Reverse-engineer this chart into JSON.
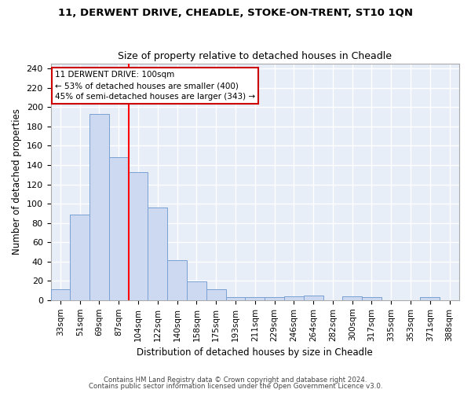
{
  "title1": "11, DERWENT DRIVE, CHEADLE, STOKE-ON-TRENT, ST10 1QN",
  "title2": "Size of property relative to detached houses in Cheadle",
  "xlabel": "Distribution of detached houses by size in Cheadle",
  "ylabel": "Number of detached properties",
  "categories": [
    "33sqm",
    "51sqm",
    "69sqm",
    "87sqm",
    "104sqm",
    "122sqm",
    "140sqm",
    "158sqm",
    "175sqm",
    "193sqm",
    "211sqm",
    "229sqm",
    "246sqm",
    "264sqm",
    "282sqm",
    "300sqm",
    "317sqm",
    "335sqm",
    "353sqm",
    "371sqm",
    "388sqm"
  ],
  "values": [
    11,
    89,
    193,
    148,
    133,
    96,
    41,
    19,
    11,
    3,
    3,
    3,
    4,
    5,
    0,
    4,
    3,
    0,
    0,
    3,
    0
  ],
  "bar_color": "#ccd9f0",
  "bar_edge_color": "#7aa0d4",
  "red_line_index": 4,
  "ylim": [
    0,
    245
  ],
  "yticks": [
    0,
    20,
    40,
    60,
    80,
    100,
    120,
    140,
    160,
    180,
    200,
    220,
    240
  ],
  "annotation_text": "11 DERWENT DRIVE: 100sqm\n← 53% of detached houses are smaller (400)\n45% of semi-detached houses are larger (343) →",
  "annotation_box_color": "#ffffff",
  "annotation_box_edge": "#cc0000",
  "footer1": "Contains HM Land Registry data © Crown copyright and database right 2024.",
  "footer2": "Contains public sector information licensed under the Open Government Licence v3.0.",
  "fig_bg_color": "#ffffff",
  "plot_bg_color": "#e8eef8",
  "grid_color": "#ffffff"
}
